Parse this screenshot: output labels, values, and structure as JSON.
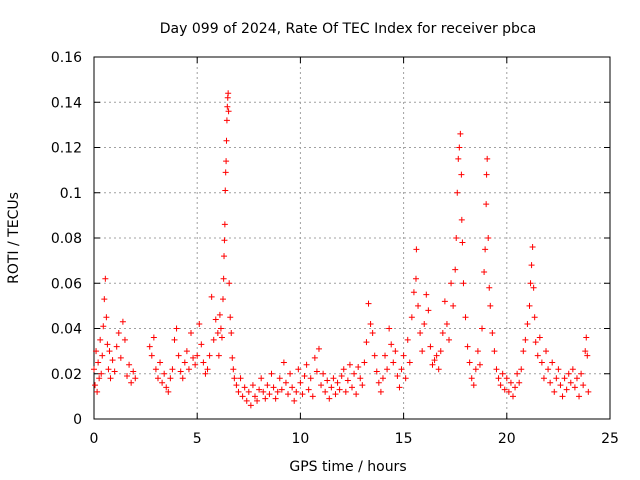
{
  "chart_data": {
    "type": "scatter",
    "title": "Day 099 of 2024, Rate Of TEC Index for receiver pbca",
    "xlabel": "GPS time / hours",
    "ylabel": "ROTI / TECUs",
    "xlim": [
      0,
      25
    ],
    "ylim": [
      0,
      0.16
    ],
    "x_ticks": [
      0,
      5,
      10,
      15,
      20,
      25
    ],
    "y_ticks": [
      0,
      0.02,
      0.04,
      0.06,
      0.08,
      0.1,
      0.12,
      0.14,
      0.16
    ],
    "x_tick_labels": [
      "0",
      "5",
      "10",
      "15",
      "20",
      "25"
    ],
    "y_tick_labels": [
      "0",
      "0.02",
      "0.04",
      "0.06",
      "0.08",
      "0.1",
      "0.12",
      "0.14",
      "0.16"
    ],
    "grid": true,
    "marker": "+",
    "color": "#ff0000",
    "series": [
      {
        "name": "ROTI",
        "points": [
          [
            0.0,
            0.022
          ],
          [
            0.05,
            0.015
          ],
          [
            0.1,
            0.03
          ],
          [
            0.15,
            0.012
          ],
          [
            0.2,
            0.025
          ],
          [
            0.25,
            0.018
          ],
          [
            0.3,
            0.035
          ],
          [
            0.35,
            0.02
          ],
          [
            0.4,
            0.028
          ],
          [
            0.45,
            0.041
          ],
          [
            0.5,
            0.053
          ],
          [
            0.55,
            0.062
          ],
          [
            0.6,
            0.045
          ],
          [
            0.65,
            0.033
          ],
          [
            0.7,
            0.022
          ],
          [
            0.75,
            0.03
          ],
          [
            0.8,
            0.018
          ],
          [
            0.9,
            0.026
          ],
          [
            1.0,
            0.021
          ],
          [
            1.1,
            0.032
          ],
          [
            1.2,
            0.038
          ],
          [
            1.3,
            0.027
          ],
          [
            1.4,
            0.043
          ],
          [
            1.5,
            0.035
          ],
          [
            1.6,
            0.019
          ],
          [
            1.7,
            0.024
          ],
          [
            1.8,
            0.016
          ],
          [
            1.9,
            0.021
          ],
          [
            2.0,
            0.018
          ],
          [
            2.7,
            0.032
          ],
          [
            2.8,
            0.028
          ],
          [
            2.9,
            0.036
          ],
          [
            3.0,
            0.022
          ],
          [
            3.1,
            0.018
          ],
          [
            3.2,
            0.025
          ],
          [
            3.3,
            0.016
          ],
          [
            3.4,
            0.02
          ],
          [
            3.5,
            0.014
          ],
          [
            3.6,
            0.012
          ],
          [
            3.7,
            0.018
          ],
          [
            3.8,
            0.022
          ],
          [
            3.9,
            0.035
          ],
          [
            4.0,
            0.04
          ],
          [
            4.1,
            0.028
          ],
          [
            4.2,
            0.021
          ],
          [
            4.3,
            0.018
          ],
          [
            4.4,
            0.025
          ],
          [
            4.5,
            0.03
          ],
          [
            4.6,
            0.022
          ],
          [
            4.7,
            0.038
          ],
          [
            4.8,
            0.027
          ],
          [
            4.9,
            0.024
          ],
          [
            5.0,
            0.028
          ],
          [
            5.1,
            0.042
          ],
          [
            5.2,
            0.033
          ],
          [
            5.3,
            0.025
          ],
          [
            5.4,
            0.02
          ],
          [
            5.5,
            0.022
          ],
          [
            5.6,
            0.028
          ],
          [
            5.7,
            0.054
          ],
          [
            5.8,
            0.035
          ],
          [
            5.9,
            0.044
          ],
          [
            6.0,
            0.038
          ],
          [
            6.05,
            0.028
          ],
          [
            6.1,
            0.046
          ],
          [
            6.15,
            0.04
          ],
          [
            6.2,
            0.036
          ],
          [
            6.25,
            0.053
          ],
          [
            6.28,
            0.062
          ],
          [
            6.3,
            0.072
          ],
          [
            6.32,
            0.079
          ],
          [
            6.34,
            0.086
          ],
          [
            6.36,
            0.101
          ],
          [
            6.38,
            0.109
          ],
          [
            6.4,
            0.114
          ],
          [
            6.42,
            0.123
          ],
          [
            6.44,
            0.132
          ],
          [
            6.46,
            0.138
          ],
          [
            6.48,
            0.142
          ],
          [
            6.5,
            0.144
          ],
          [
            6.52,
            0.136
          ],
          [
            6.55,
            0.06
          ],
          [
            6.6,
            0.045
          ],
          [
            6.65,
            0.038
          ],
          [
            6.7,
            0.027
          ],
          [
            6.75,
            0.022
          ],
          [
            6.8,
            0.018
          ],
          [
            6.9,
            0.015
          ],
          [
            7.0,
            0.012
          ],
          [
            7.1,
            0.018
          ],
          [
            7.2,
            0.01
          ],
          [
            7.3,
            0.014
          ],
          [
            7.4,
            0.008
          ],
          [
            7.5,
            0.012
          ],
          [
            7.6,
            0.006
          ],
          [
            7.7,
            0.015
          ],
          [
            7.8,
            0.01
          ],
          [
            7.9,
            0.008
          ],
          [
            8.0,
            0.013
          ],
          [
            8.1,
            0.018
          ],
          [
            8.2,
            0.012
          ],
          [
            8.3,
            0.009
          ],
          [
            8.4,
            0.015
          ],
          [
            8.5,
            0.011
          ],
          [
            8.6,
            0.02
          ],
          [
            8.7,
            0.014
          ],
          [
            8.8,
            0.009
          ],
          [
            8.9,
            0.012
          ],
          [
            9.0,
            0.018
          ],
          [
            9.1,
            0.013
          ],
          [
            9.2,
            0.025
          ],
          [
            9.3,
            0.016
          ],
          [
            9.4,
            0.011
          ],
          [
            9.5,
            0.02
          ],
          [
            9.6,
            0.014
          ],
          [
            9.7,
            0.008
          ],
          [
            9.8,
            0.012
          ],
          [
            9.9,
            0.022
          ],
          [
            10.0,
            0.016
          ],
          [
            10.1,
            0.011
          ],
          [
            10.2,
            0.019
          ],
          [
            10.3,
            0.024
          ],
          [
            10.4,
            0.013
          ],
          [
            10.5,
            0.018
          ],
          [
            10.6,
            0.01
          ],
          [
            10.7,
            0.027
          ],
          [
            10.8,
            0.021
          ],
          [
            10.9,
            0.031
          ],
          [
            11.0,
            0.015
          ],
          [
            11.1,
            0.02
          ],
          [
            11.2,
            0.012
          ],
          [
            11.3,
            0.017
          ],
          [
            11.4,
            0.009
          ],
          [
            11.5,
            0.014
          ],
          [
            11.6,
            0.018
          ],
          [
            11.7,
            0.011
          ],
          [
            11.8,
            0.016
          ],
          [
            11.9,
            0.013
          ],
          [
            12.0,
            0.019
          ],
          [
            12.1,
            0.022
          ],
          [
            12.2,
            0.012
          ],
          [
            12.3,
            0.017
          ],
          [
            12.4,
            0.024
          ],
          [
            12.5,
            0.014
          ],
          [
            12.6,
            0.02
          ],
          [
            12.7,
            0.011
          ],
          [
            12.8,
            0.023
          ],
          [
            12.9,
            0.018
          ],
          [
            13.0,
            0.015
          ],
          [
            13.1,
            0.025
          ],
          [
            13.2,
            0.034
          ],
          [
            13.3,
            0.051
          ],
          [
            13.4,
            0.042
          ],
          [
            13.5,
            0.038
          ],
          [
            13.6,
            0.028
          ],
          [
            13.7,
            0.021
          ],
          [
            13.8,
            0.016
          ],
          [
            13.9,
            0.012
          ],
          [
            14.0,
            0.018
          ],
          [
            14.1,
            0.028
          ],
          [
            14.2,
            0.022
          ],
          [
            14.3,
            0.04
          ],
          [
            14.4,
            0.033
          ],
          [
            14.5,
            0.025
          ],
          [
            14.6,
            0.03
          ],
          [
            14.7,
            0.019
          ],
          [
            14.8,
            0.014
          ],
          [
            14.9,
            0.022
          ],
          [
            15.0,
            0.028
          ],
          [
            15.1,
            0.018
          ],
          [
            15.2,
            0.035
          ],
          [
            15.3,
            0.025
          ],
          [
            15.4,
            0.045
          ],
          [
            15.5,
            0.056
          ],
          [
            15.6,
            0.062
          ],
          [
            15.62,
            0.075
          ],
          [
            15.7,
            0.05
          ],
          [
            15.8,
            0.038
          ],
          [
            15.9,
            0.03
          ],
          [
            16.0,
            0.042
          ],
          [
            16.1,
            0.055
          ],
          [
            16.2,
            0.048
          ],
          [
            16.3,
            0.032
          ],
          [
            16.4,
            0.024
          ],
          [
            16.5,
            0.026
          ],
          [
            16.6,
            0.028
          ],
          [
            16.7,
            0.022
          ],
          [
            16.8,
            0.03
          ],
          [
            16.9,
            0.038
          ],
          [
            17.0,
            0.052
          ],
          [
            17.1,
            0.042
          ],
          [
            17.2,
            0.035
          ],
          [
            17.3,
            0.06
          ],
          [
            17.4,
            0.05
          ],
          [
            17.5,
            0.066
          ],
          [
            17.55,
            0.08
          ],
          [
            17.6,
            0.1
          ],
          [
            17.65,
            0.115
          ],
          [
            17.7,
            0.12
          ],
          [
            17.75,
            0.126
          ],
          [
            17.8,
            0.108
          ],
          [
            17.82,
            0.088
          ],
          [
            17.85,
            0.078
          ],
          [
            17.9,
            0.06
          ],
          [
            18.0,
            0.045
          ],
          [
            18.1,
            0.032
          ],
          [
            18.2,
            0.025
          ],
          [
            18.3,
            0.018
          ],
          [
            18.4,
            0.015
          ],
          [
            18.5,
            0.022
          ],
          [
            18.6,
            0.03
          ],
          [
            18.7,
            0.024
          ],
          [
            18.8,
            0.04
          ],
          [
            18.9,
            0.065
          ],
          [
            18.95,
            0.075
          ],
          [
            19.0,
            0.095
          ],
          [
            19.02,
            0.108
          ],
          [
            19.05,
            0.115
          ],
          [
            19.1,
            0.08
          ],
          [
            19.15,
            0.058
          ],
          [
            19.2,
            0.05
          ],
          [
            19.3,
            0.038
          ],
          [
            19.4,
            0.03
          ],
          [
            19.5,
            0.022
          ],
          [
            19.6,
            0.018
          ],
          [
            19.7,
            0.015
          ],
          [
            19.8,
            0.02
          ],
          [
            19.9,
            0.013
          ],
          [
            20.0,
            0.018
          ],
          [
            20.1,
            0.012
          ],
          [
            20.2,
            0.016
          ],
          [
            20.3,
            0.01
          ],
          [
            20.4,
            0.014
          ],
          [
            20.5,
            0.02
          ],
          [
            20.6,
            0.016
          ],
          [
            20.7,
            0.022
          ],
          [
            20.8,
            0.03
          ],
          [
            20.9,
            0.035
          ],
          [
            21.0,
            0.042
          ],
          [
            21.1,
            0.05
          ],
          [
            21.15,
            0.06
          ],
          [
            21.2,
            0.068
          ],
          [
            21.25,
            0.076
          ],
          [
            21.3,
            0.058
          ],
          [
            21.35,
            0.045
          ],
          [
            21.4,
            0.034
          ],
          [
            21.5,
            0.028
          ],
          [
            21.6,
            0.036
          ],
          [
            21.7,
            0.025
          ],
          [
            21.8,
            0.018
          ],
          [
            21.9,
            0.03
          ],
          [
            22.0,
            0.022
          ],
          [
            22.1,
            0.016
          ],
          [
            22.2,
            0.025
          ],
          [
            22.3,
            0.012
          ],
          [
            22.4,
            0.018
          ],
          [
            22.5,
            0.022
          ],
          [
            22.6,
            0.015
          ],
          [
            22.7,
            0.01
          ],
          [
            22.8,
            0.018
          ],
          [
            22.9,
            0.013
          ],
          [
            23.0,
            0.02
          ],
          [
            23.1,
            0.016
          ],
          [
            23.2,
            0.022
          ],
          [
            23.3,
            0.014
          ],
          [
            23.4,
            0.018
          ],
          [
            23.5,
            0.01
          ],
          [
            23.6,
            0.02
          ],
          [
            23.7,
            0.015
          ],
          [
            23.8,
            0.03
          ],
          [
            23.85,
            0.036
          ],
          [
            23.9,
            0.028
          ],
          [
            23.95,
            0.012
          ]
        ]
      }
    ]
  }
}
